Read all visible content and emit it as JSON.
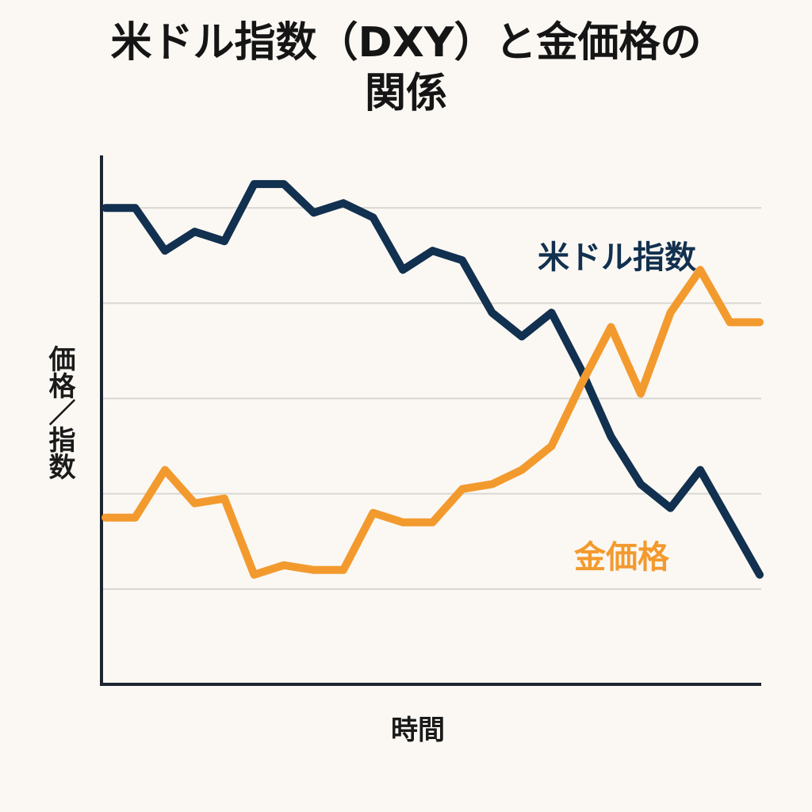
{
  "chart_data": {
    "type": "line",
    "title_line1": "米ドル指数（DXY）と金価格の",
    "title_line2": "関係",
    "xlabel": "時間",
    "ylabel": "価格／指数",
    "x": [
      1,
      2,
      3,
      4,
      5,
      6,
      7,
      8,
      9,
      10,
      11,
      12,
      13,
      14,
      15,
      16,
      17,
      18,
      19,
      20,
      21,
      22,
      23
    ],
    "ylim": [
      0,
      6
    ],
    "grid": true,
    "series": [
      {
        "name": "米ドル指数",
        "color": "#12304f",
        "values": [
          5.0,
          5.0,
          4.55,
          4.75,
          4.65,
          5.25,
          5.25,
          4.95,
          5.05,
          4.9,
          4.35,
          4.55,
          4.45,
          3.9,
          3.65,
          3.9,
          3.3,
          2.6,
          2.1,
          1.85,
          2.25,
          1.7,
          1.15
        ]
      },
      {
        "name": "金価格",
        "color": "#f39a2e",
        "values": [
          1.75,
          1.75,
          2.25,
          1.9,
          1.95,
          1.15,
          1.25,
          1.2,
          1.2,
          1.8,
          1.7,
          1.7,
          2.05,
          2.1,
          2.25,
          2.5,
          3.15,
          3.75,
          3.05,
          3.9,
          4.35,
          3.8,
          3.8
        ]
      }
    ]
  }
}
